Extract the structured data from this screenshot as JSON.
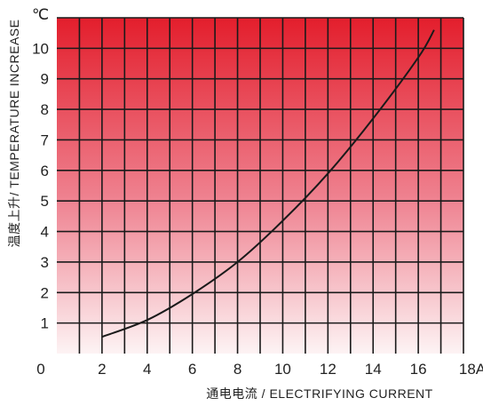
{
  "chart_data": {
    "type": "line",
    "ylabel": "温度上升/ TEMPERATURE INCREASE",
    "xlabel": "通电电流 / ELECTRIFYING CURRENT",
    "y_unit": "℃",
    "x_unit": "A",
    "x_ticks": [
      "0",
      "2",
      "4",
      "6",
      "8",
      "10",
      "12",
      "14",
      "16",
      "18A"
    ],
    "y_ticks": [
      "0",
      "1",
      "2",
      "3",
      "4",
      "5",
      "6",
      "7",
      "8",
      "9",
      "10"
    ],
    "xlim": [
      0,
      18
    ],
    "ylim": [
      0,
      11
    ],
    "grid": true,
    "series": [
      {
        "x": [
          2,
          4,
          6,
          8,
          10,
          12,
          14,
          16,
          16.7
        ],
        "y": [
          0.55,
          1.1,
          1.95,
          3.0,
          4.35,
          5.9,
          7.7,
          9.7,
          10.6
        ]
      }
    ],
    "colors": {
      "top": "#e31e2c",
      "bottom": "#fdf3f4",
      "grid": "#1a1a1a",
      "line": "#1a1a1a"
    }
  }
}
